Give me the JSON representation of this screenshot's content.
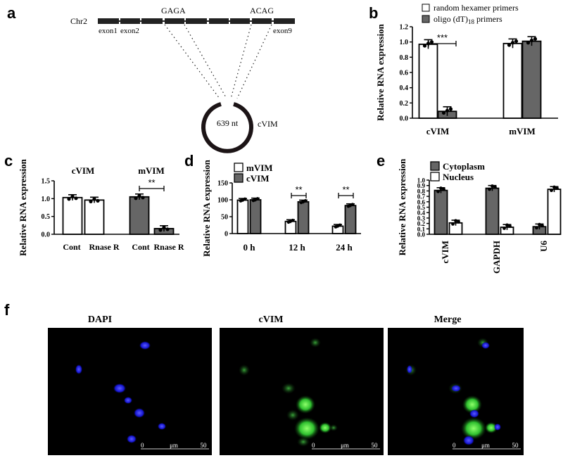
{
  "panel_labels": {
    "a": "a",
    "b": "b",
    "c": "c",
    "d": "d",
    "e": "e",
    "f": "f"
  },
  "colors": {
    "gray_bar": "#666666",
    "white_bar": "#ffffff",
    "dapi": "#2a2aff",
    "cvim": "#35d235",
    "black": "#000000"
  },
  "panel_a": {
    "chromosome": "Chr2",
    "left_junction": "GAGA",
    "right_junction": "ACAG",
    "exon_labels": [
      "exon1",
      "exon2",
      "exon9"
    ],
    "circle_size": "639 nt",
    "circle_name": "cVIM"
  },
  "chart_data": [
    {
      "panel": "b",
      "type": "bar",
      "ylabel": "Relative RNA expression",
      "ylim": [
        0,
        1.2
      ],
      "yticks": [
        "0.0",
        "0.2",
        "0.4",
        "0.6",
        "0.8",
        "1.0",
        "1.2"
      ],
      "categories": [
        "cVIM",
        "mVIM"
      ],
      "legend": [
        "random hexamer primers",
        "oligo (dT)",
        "18",
        " primers"
      ],
      "series": [
        {
          "name": "random hexamer primers",
          "color": "#ffffff",
          "values": [
            0.97,
            0.98
          ]
        },
        {
          "name": "oligo (dT)18 primers",
          "color": "#666666",
          "values": [
            0.09,
            1.01
          ]
        }
      ],
      "significance": [
        {
          "text": "***",
          "category": 0
        }
      ]
    },
    {
      "panel": "c",
      "type": "bar",
      "ylabel": "Relative RNA expression",
      "ylim": [
        0,
        1.5
      ],
      "yticks": [
        "0.0",
        "0.5",
        "1.0",
        "1.5"
      ],
      "groups": [
        "cVIM",
        "mVIM"
      ],
      "xticklabels": [
        "Cont",
        "Rnase R",
        "Cont",
        "Rnase R"
      ],
      "values": [
        1.03,
        0.96,
        1.05,
        0.16
      ],
      "colors": [
        "#ffffff",
        "#ffffff",
        "#666666",
        "#666666"
      ],
      "significance": [
        {
          "text": "**",
          "group": 1
        }
      ]
    },
    {
      "panel": "d",
      "type": "bar",
      "ylabel": "Relative RNA expression",
      "ylim": [
        0,
        150
      ],
      "yticks": [
        "0",
        "50",
        "100",
        "150"
      ],
      "categories": [
        "0 h",
        "12 h",
        "24 h"
      ],
      "series": [
        {
          "name": "mVIM",
          "color": "#ffffff",
          "values": [
            99,
            36,
            22
          ]
        },
        {
          "name": "cVIM",
          "color": "#666666",
          "values": [
            100,
            94,
            83
          ]
        }
      ],
      "significance": [
        {
          "text": "**",
          "category": 1
        },
        {
          "text": "**",
          "category": 2
        }
      ]
    },
    {
      "panel": "e",
      "type": "bar",
      "ylabel": "Relative RNA expression",
      "ylim": [
        0,
        1.0
      ],
      "yticks": [
        "0.0",
        "0.1",
        "0.2",
        "0.3",
        "0.4",
        "0.5",
        "0.6",
        "0.7",
        "0.8",
        "0.9",
        "1.0"
      ],
      "categories": [
        "cVIM",
        "GAPDH",
        "U6"
      ],
      "series": [
        {
          "name": "Cytoplasm",
          "color": "#666666",
          "values": [
            0.81,
            0.85,
            0.14
          ]
        },
        {
          "name": "Nucleus",
          "color": "#ffffff",
          "values": [
            0.21,
            0.13,
            0.83
          ]
        }
      ]
    }
  ],
  "panel_f": {
    "titles": [
      "DAPI",
      "cVIM",
      "Merge"
    ],
    "scalebar": {
      "start": "0",
      "unit": "μm",
      "end": "50"
    }
  }
}
